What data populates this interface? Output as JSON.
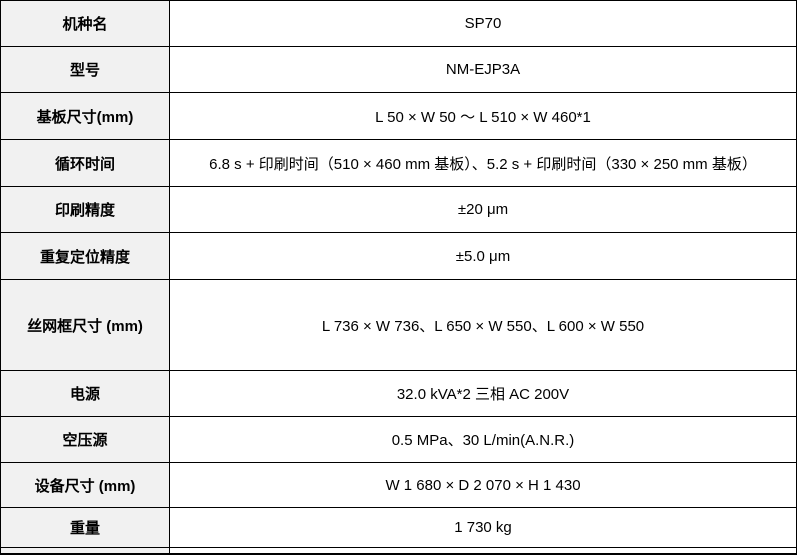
{
  "table": {
    "title": "SP70 specifications table",
    "colors": {
      "label_background": "#f1f1f1",
      "value_background": "#ffffff",
      "border": "#000000",
      "text": "#000000"
    },
    "rows": [
      {
        "label": "机种名",
        "value": "SP70"
      },
      {
        "label": "型号",
        "value": "NM-EJP3A"
      },
      {
        "label": "基板尺寸(mm)",
        "value": "L 50 × W 50 〜 L 510 × W 460*1"
      },
      {
        "label": "循环时间",
        "value": "6.8 s + 印刷时间（510 × 460 mm 基板）、5.2 s + 印刷时间（330 × 250 mm 基板）"
      },
      {
        "label": "印刷精度",
        "value": "±20 μm"
      },
      {
        "label": "重复定位精度",
        "value": "±5.0 μm"
      },
      {
        "label": "丝网框尺寸 (mm)",
        "value": "L 736 × W 736、L 650 × W 550、L 600 × W 550"
      },
      {
        "label": "电源",
        "value": "32.0 kVA*2 三相 AC 200V"
      },
      {
        "label": "空压源",
        "value": "0.5 MPa、30 L/min(A.N.R.)"
      },
      {
        "label": "设备尺寸 (mm)",
        "value": "W 1 680 × D 2 070 × H 1 430"
      },
      {
        "label": "重量",
        "value": "1 730 kg"
      }
    ]
  }
}
